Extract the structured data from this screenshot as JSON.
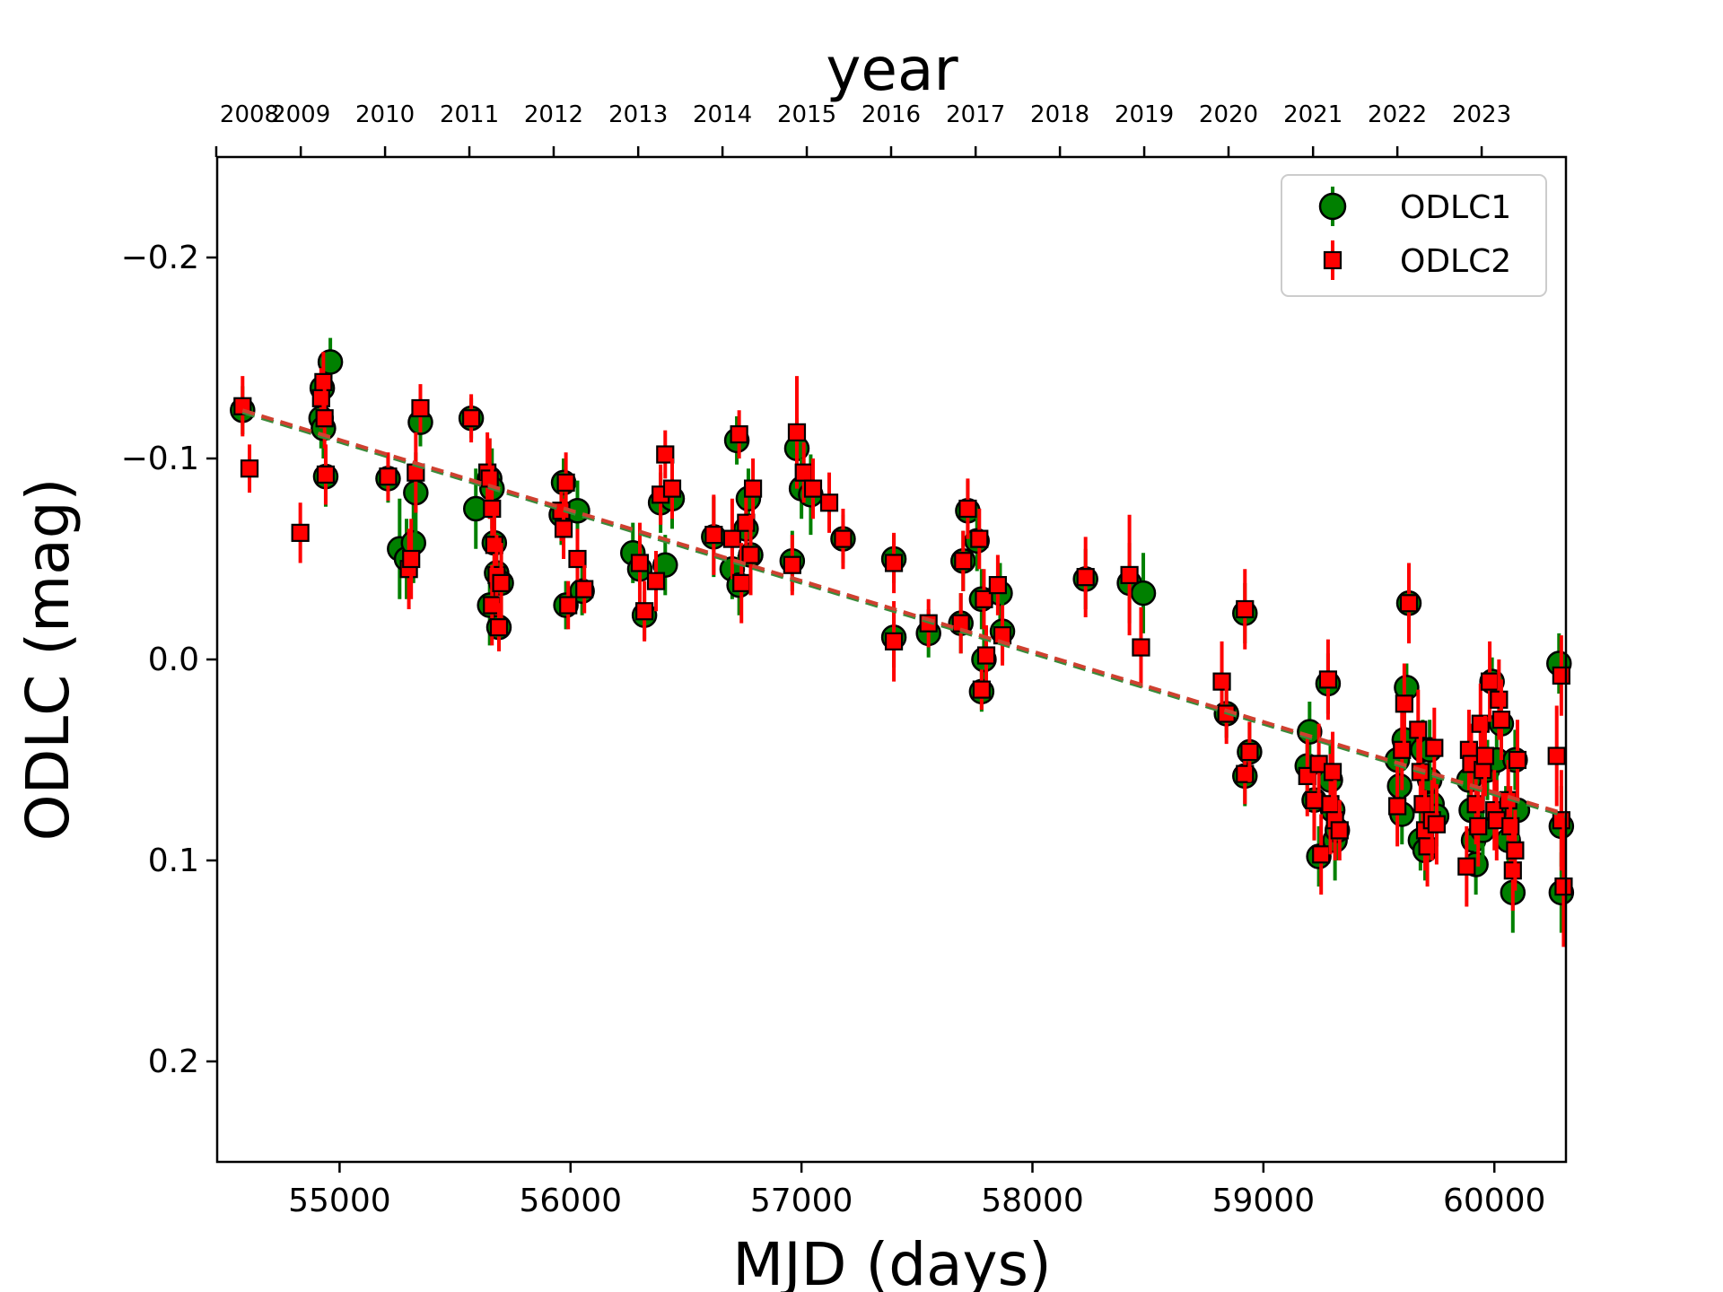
{
  "chart_data": {
    "type": "scatter",
    "title": "",
    "xlabel": "MJD (days)",
    "ylabel": "ODLC (mag)",
    "top_xlabel": "year",
    "xlim": [
      54470,
      60310
    ],
    "ylim": [
      0.25,
      -0.25
    ],
    "y_inverted": true,
    "x_ticks": [
      55000,
      56000,
      57000,
      58000,
      59000,
      60000
    ],
    "x_tick_labels": [
      "55000",
      "56000",
      "57000",
      "58000",
      "59000",
      "60000"
    ],
    "y_ticks": [
      -0.2,
      -0.1,
      0.0,
      0.1,
      0.2
    ],
    "y_tick_labels": [
      "−0.2",
      "−0.1",
      "0.0",
      "0.1",
      "0.2"
    ],
    "year_ticks": [
      {
        "label": "2008",
        "mjd": 54466
      },
      {
        "label": "2009",
        "mjd": 54832
      },
      {
        "label": "2010",
        "mjd": 55197
      },
      {
        "label": "2011",
        "mjd": 55562
      },
      {
        "label": "2012",
        "mjd": 55927
      },
      {
        "label": "2013",
        "mjd": 56293
      },
      {
        "label": "2014",
        "mjd": 56658
      },
      {
        "label": "2015",
        "mjd": 57023
      },
      {
        "label": "2016",
        "mjd": 57388
      },
      {
        "label": "2017",
        "mjd": 57754
      },
      {
        "label": "2018",
        "mjd": 58119
      },
      {
        "label": "2019",
        "mjd": 58484
      },
      {
        "label": "2020",
        "mjd": 58849
      },
      {
        "label": "2021",
        "mjd": 59215
      },
      {
        "label": "2022",
        "mjd": 59580
      },
      {
        "label": "2023",
        "mjd": 59945
      }
    ],
    "legend_position": "top-right",
    "grid": false,
    "series": [
      {
        "name": "ODLC1",
        "marker": "circle",
        "color": "#008000",
        "errcolor": "#008000",
        "fit": {
          "x": [
            54580,
            60310
          ],
          "y": [
            -0.123,
            0.078
          ]
        },
        "points": [
          [
            54580,
            -0.124,
            0.012
          ],
          [
            54920,
            -0.12,
            0.015
          ],
          [
            54930,
            -0.115,
            0.015
          ],
          [
            54925,
            -0.135,
            0.015
          ],
          [
            54960,
            -0.148,
            0.012
          ],
          [
            54940,
            -0.091,
            0.015
          ],
          [
            55210,
            -0.09,
            0.012
          ],
          [
            55260,
            -0.055,
            0.025
          ],
          [
            55290,
            -0.05,
            0.02
          ],
          [
            55320,
            -0.058,
            0.02
          ],
          [
            55330,
            -0.083,
            0.02
          ],
          [
            55350,
            -0.118,
            0.012
          ],
          [
            55570,
            -0.12,
            0.01
          ],
          [
            55590,
            -0.075,
            0.02
          ],
          [
            55650,
            -0.09,
            0.02
          ],
          [
            55660,
            -0.085,
            0.02
          ],
          [
            55670,
            -0.058,
            0.02
          ],
          [
            55680,
            -0.043,
            0.02
          ],
          [
            55650,
            -0.027,
            0.02
          ],
          [
            55700,
            -0.038,
            0.02
          ],
          [
            55690,
            -0.016,
            0.012
          ],
          [
            55970,
            -0.088,
            0.012
          ],
          [
            55960,
            -0.072,
            0.015
          ],
          [
            55980,
            -0.027,
            0.012
          ],
          [
            56030,
            -0.074,
            0.015
          ],
          [
            56050,
            -0.034,
            0.012
          ],
          [
            56270,
            -0.053,
            0.015
          ],
          [
            56300,
            -0.045,
            0.015
          ],
          [
            56320,
            -0.022,
            0.012
          ],
          [
            56390,
            -0.078,
            0.015
          ],
          [
            56410,
            -0.047,
            0.015
          ],
          [
            56440,
            -0.08,
            0.015
          ],
          [
            56620,
            -0.061,
            0.02
          ],
          [
            56700,
            -0.045,
            0.015
          ],
          [
            56720,
            -0.109,
            0.012
          ],
          [
            56730,
            -0.037,
            0.015
          ],
          [
            56760,
            -0.065,
            0.015
          ],
          [
            56770,
            -0.08,
            0.015
          ],
          [
            56780,
            -0.052,
            0.015
          ],
          [
            56960,
            -0.049,
            0.015
          ],
          [
            56980,
            -0.105,
            0.015
          ],
          [
            57000,
            -0.085,
            0.015
          ],
          [
            57040,
            -0.082,
            0.02
          ],
          [
            57180,
            -0.06,
            0.012
          ],
          [
            57400,
            -0.05,
            0.012
          ],
          [
            57400,
            -0.011,
            0.015
          ],
          [
            57550,
            -0.013,
            0.012
          ],
          [
            57690,
            -0.018,
            0.015
          ],
          [
            57700,
            -0.049,
            0.015
          ],
          [
            57720,
            -0.074,
            0.015
          ],
          [
            57760,
            -0.059,
            0.015
          ],
          [
            57780,
            -0.03,
            0.015
          ],
          [
            57790,
            0.0,
            0.015
          ],
          [
            57780,
            0.016,
            0.01
          ],
          [
            57860,
            -0.033,
            0.015
          ],
          [
            57870,
            -0.014,
            0.015
          ],
          [
            58230,
            -0.04,
            0.015
          ],
          [
            58420,
            -0.038,
            0.02
          ],
          [
            58480,
            -0.033,
            0.02
          ],
          [
            58840,
            0.027,
            0.012
          ],
          [
            58920,
            0.058,
            0.015
          ],
          [
            58940,
            0.046,
            0.015
          ],
          [
            58920,
            -0.023,
            0.015
          ],
          [
            59190,
            0.053,
            0.015
          ],
          [
            59220,
            0.07,
            0.02
          ],
          [
            59240,
            0.098,
            0.015
          ],
          [
            59200,
            0.036,
            0.015
          ],
          [
            59280,
            0.012,
            0.015
          ],
          [
            59290,
            0.06,
            0.02
          ],
          [
            59300,
            0.075,
            0.02
          ],
          [
            59310,
            0.09,
            0.02
          ],
          [
            59320,
            0.085,
            0.015
          ],
          [
            59580,
            0.05,
            0.015
          ],
          [
            59590,
            0.063,
            0.015
          ],
          [
            59600,
            0.077,
            0.015
          ],
          [
            59610,
            0.04,
            0.015
          ],
          [
            59620,
            0.014,
            0.012
          ],
          [
            59630,
            -0.028,
            0.012
          ],
          [
            59680,
            0.09,
            0.015
          ],
          [
            59700,
            0.095,
            0.015
          ],
          [
            59720,
            0.06,
            0.015
          ],
          [
            59730,
            0.072,
            0.015
          ],
          [
            59750,
            0.078,
            0.015
          ],
          [
            59690,
            0.045,
            0.015
          ],
          [
            59720,
            0.045,
            0.015
          ],
          [
            59890,
            0.06,
            0.015
          ],
          [
            59900,
            0.075,
            0.015
          ],
          [
            59910,
            0.09,
            0.015
          ],
          [
            59920,
            0.102,
            0.015
          ],
          [
            59950,
            0.085,
            0.015
          ],
          [
            59970,
            0.055,
            0.015
          ],
          [
            59990,
            0.011,
            0.012
          ],
          [
            60010,
            0.05,
            0.015
          ],
          [
            60030,
            0.032,
            0.015
          ],
          [
            60050,
            0.078,
            0.015
          ],
          [
            60060,
            0.09,
            0.015
          ],
          [
            60080,
            0.116,
            0.02
          ],
          [
            60090,
            0.05,
            0.015
          ],
          [
            60100,
            0.075,
            0.015
          ],
          [
            60280,
            0.002,
            0.015
          ],
          [
            60290,
            0.083,
            0.02
          ],
          [
            60290,
            0.116,
            0.02
          ]
        ]
      },
      {
        "name": "ODLC2",
        "marker": "square",
        "color": "#ff0000",
        "errcolor": "#ff0000",
        "fit": {
          "x": [
            54580,
            60310
          ],
          "y": [
            -0.124,
            0.077
          ]
        },
        "points": [
          [
            54580,
            -0.126,
            0.015
          ],
          [
            54610,
            -0.095,
            0.012
          ],
          [
            54830,
            -0.063,
            0.015
          ],
          [
            54920,
            -0.13,
            0.015
          ],
          [
            54930,
            -0.138,
            0.015
          ],
          [
            54935,
            -0.12,
            0.015
          ],
          [
            54940,
            -0.092,
            0.015
          ],
          [
            55210,
            -0.091,
            0.012
          ],
          [
            55300,
            -0.045,
            0.02
          ],
          [
            55310,
            -0.05,
            0.02
          ],
          [
            55330,
            -0.093,
            0.02
          ],
          [
            55350,
            -0.125,
            0.012
          ],
          [
            55570,
            -0.12,
            0.012
          ],
          [
            55640,
            -0.093,
            0.02
          ],
          [
            55650,
            -0.09,
            0.02
          ],
          [
            55660,
            -0.075,
            0.02
          ],
          [
            55670,
            -0.057,
            0.02
          ],
          [
            55680,
            -0.042,
            0.02
          ],
          [
            55660,
            -0.027,
            0.02
          ],
          [
            55700,
            -0.038,
            0.02
          ],
          [
            55690,
            -0.016,
            0.012
          ],
          [
            55960,
            -0.074,
            0.015
          ],
          [
            55970,
            -0.065,
            0.015
          ],
          [
            55980,
            -0.088,
            0.015
          ],
          [
            55990,
            -0.027,
            0.012
          ],
          [
            56030,
            -0.05,
            0.015
          ],
          [
            56060,
            -0.035,
            0.012
          ],
          [
            56300,
            -0.048,
            0.02
          ],
          [
            56320,
            -0.024,
            0.015
          ],
          [
            56370,
            -0.039,
            0.015
          ],
          [
            56390,
            -0.082,
            0.015
          ],
          [
            56410,
            -0.102,
            0.012
          ],
          [
            56440,
            -0.085,
            0.015
          ],
          [
            56620,
            -0.062,
            0.02
          ],
          [
            56700,
            -0.06,
            0.02
          ],
          [
            56730,
            -0.112,
            0.012
          ],
          [
            56740,
            -0.038,
            0.02
          ],
          [
            56760,
            -0.068,
            0.015
          ],
          [
            56780,
            -0.052,
            0.02
          ],
          [
            56790,
            -0.085,
            0.015
          ],
          [
            56960,
            -0.047,
            0.015
          ],
          [
            56980,
            -0.113,
            0.028
          ],
          [
            57010,
            -0.093,
            0.015
          ],
          [
            57050,
            -0.085,
            0.015
          ],
          [
            57120,
            -0.078,
            0.015
          ],
          [
            57180,
            -0.06,
            0.015
          ],
          [
            57400,
            -0.048,
            0.015
          ],
          [
            57400,
            -0.009,
            0.02
          ],
          [
            57550,
            -0.018,
            0.012
          ],
          [
            57690,
            -0.018,
            0.015
          ],
          [
            57700,
            -0.049,
            0.015
          ],
          [
            57720,
            -0.075,
            0.015
          ],
          [
            57770,
            -0.06,
            0.015
          ],
          [
            57790,
            -0.03,
            0.015
          ],
          [
            57800,
            -0.002,
            0.015
          ],
          [
            57780,
            0.015,
            0.01
          ],
          [
            57850,
            -0.037,
            0.015
          ],
          [
            57870,
            -0.012,
            0.015
          ],
          [
            58230,
            -0.041,
            0.02
          ],
          [
            58420,
            -0.042,
            0.03
          ],
          [
            58470,
            -0.006,
            0.02
          ],
          [
            58820,
            0.011,
            0.02
          ],
          [
            58840,
            0.027,
            0.015
          ],
          [
            58920,
            0.057,
            0.015
          ],
          [
            58940,
            0.046,
            0.015
          ],
          [
            58920,
            -0.025,
            0.02
          ],
          [
            59190,
            0.058,
            0.02
          ],
          [
            59220,
            0.07,
            0.02
          ],
          [
            59250,
            0.097,
            0.02
          ],
          [
            59240,
            0.052,
            0.02
          ],
          [
            59280,
            0.01,
            0.02
          ],
          [
            59290,
            0.072,
            0.025
          ],
          [
            59300,
            0.056,
            0.02
          ],
          [
            59310,
            0.08,
            0.02
          ],
          [
            59330,
            0.085,
            0.015
          ],
          [
            59580,
            0.073,
            0.02
          ],
          [
            59600,
            0.045,
            0.02
          ],
          [
            59610,
            0.022,
            0.02
          ],
          [
            59630,
            -0.028,
            0.02
          ],
          [
            59670,
            0.035,
            0.02
          ],
          [
            59680,
            0.056,
            0.02
          ],
          [
            59690,
            0.072,
            0.02
          ],
          [
            59700,
            0.085,
            0.02
          ],
          [
            59710,
            0.093,
            0.02
          ],
          [
            59730,
            0.08,
            0.02
          ],
          [
            59740,
            0.044,
            0.02
          ],
          [
            59750,
            0.082,
            0.02
          ],
          [
            59880,
            0.103,
            0.02
          ],
          [
            59890,
            0.045,
            0.02
          ],
          [
            59900,
            0.052,
            0.02
          ],
          [
            59920,
            0.072,
            0.02
          ],
          [
            59930,
            0.083,
            0.02
          ],
          [
            59940,
            0.032,
            0.02
          ],
          [
            59950,
            0.055,
            0.02
          ],
          [
            59960,
            0.048,
            0.02
          ],
          [
            59980,
            0.011,
            0.02
          ],
          [
            60000,
            0.075,
            0.02
          ],
          [
            60010,
            0.08,
            0.02
          ],
          [
            60020,
            0.02,
            0.02
          ],
          [
            60030,
            0.03,
            0.02
          ],
          [
            60060,
            0.07,
            0.02
          ],
          [
            60070,
            0.083,
            0.02
          ],
          [
            60080,
            0.105,
            0.02
          ],
          [
            60090,
            0.095,
            0.02
          ],
          [
            60100,
            0.05,
            0.02
          ],
          [
            60270,
            0.048,
            0.025
          ],
          [
            60290,
            0.008,
            0.02
          ],
          [
            60290,
            0.08,
            0.025
          ],
          [
            60300,
            0.113,
            0.03
          ]
        ]
      }
    ]
  }
}
